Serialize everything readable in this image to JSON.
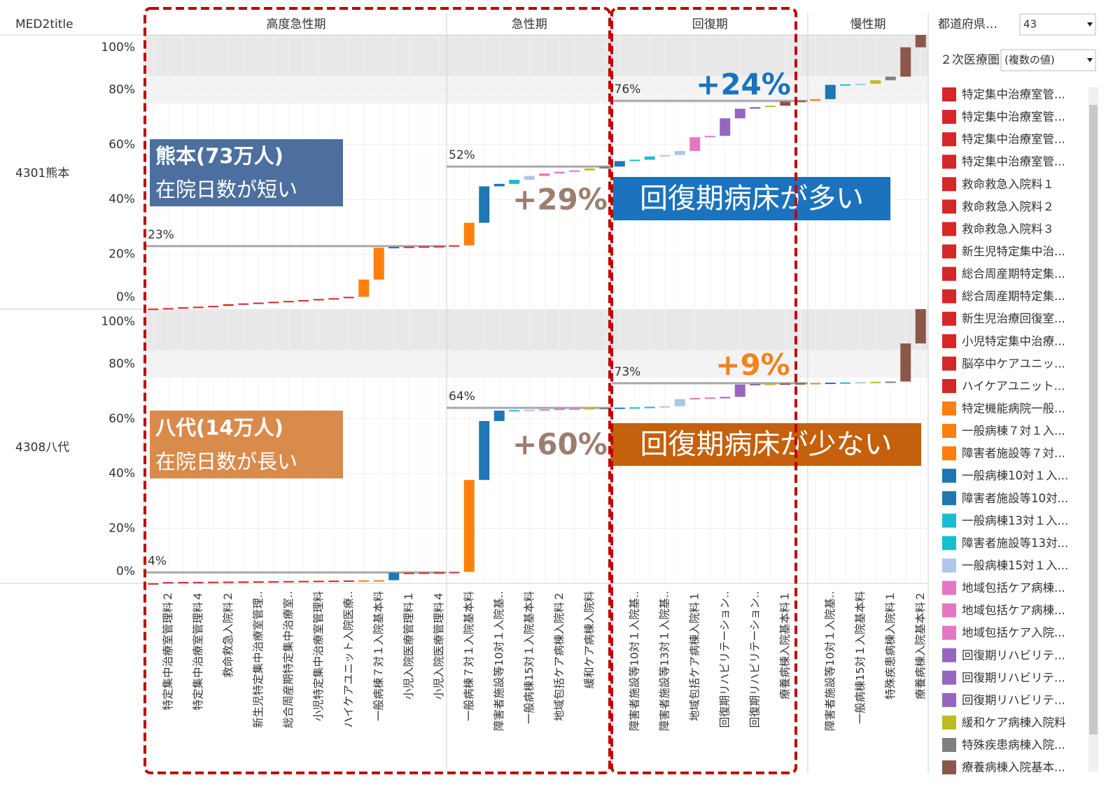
{
  "chart_data": {
    "type": "waterfall",
    "row_header": "MED2title",
    "ylim": [
      0,
      100
    ],
    "yticks": [
      {
        "value": 0,
        "label": "0%"
      },
      {
        "value": 20,
        "label": "20%"
      },
      {
        "value": 40,
        "label": "40%"
      },
      {
        "value": 60,
        "label": "60%"
      },
      {
        "value": 80,
        "label": "80%"
      },
      {
        "value": 100,
        "label": "100%"
      }
    ],
    "bands": [
      {
        "from": 85,
        "to": 100,
        "color": "#e8e8e8"
      },
      {
        "from": 75,
        "to": 85,
        "color": "#f3f3f3"
      }
    ],
    "groups": [
      {
        "name": "高度急性期",
        "categories": [
          null,
          "特定集中治療室管理料２",
          null,
          "特定集中治療室管理料４",
          null,
          "救命救急入院料２",
          null,
          "新生児特定集中治療室管理..",
          null,
          "総合周産期特定集中治療室..",
          null,
          "小児特定集中治療室管理料",
          null,
          "ハイケアユニット入院医療..",
          null,
          "一般病棟７対１入院基本料",
          null,
          "小児入院医療管理料１",
          null,
          "小児入院医療管理料４"
        ],
        "colors": [
          "#d62728",
          "#d62728",
          "#d62728",
          "#d62728",
          "#d62728",
          "#d62728",
          "#d62728",
          "#d62728",
          "#d62728",
          "#d62728",
          "#d62728",
          "#d62728",
          "#d62728",
          "#d62728",
          "#ff7f0e",
          "#ff7f0e",
          "#1f77b4",
          "#d62728",
          "#d62728",
          "#d62728"
        ]
      },
      {
        "name": "急性期",
        "categories": [
          null,
          "一般病棟７対１入院基本料",
          null,
          "障害者施設等10対１入院基..",
          null,
          "一般病棟15対１入院基本料",
          null,
          "地域包括ケア病棟入院料２",
          null,
          "緩和ケア病棟入院料",
          null
        ],
        "colors": [
          "#d62728",
          "#ff7f0e",
          "#1f77b4",
          "#1f77b4",
          "#17becf",
          "#aec7e8",
          "#e377c2",
          "#e377c2",
          "#e377c2",
          "#bcbd22",
          "#7f7f7f"
        ]
      },
      {
        "name": "回復期",
        "categories": [
          null,
          "障害者施設等10対１入院基..",
          null,
          "障害者施設等13対１入院基..",
          null,
          "地域包括ケア病棟入院料１",
          null,
          "回復期リハビリテーション..",
          null,
          "回復期リハビリテーション..",
          null,
          "療養病棟入院基本料１",
          null
        ],
        "colors": [
          "#1f77b4",
          "#17becf",
          "#17becf",
          "#aec7e8",
          "#aec7e8",
          "#e377c2",
          "#e377c2",
          "#9467bd",
          "#9467bd",
          "#9467bd",
          "#bcbd22",
          "#8c564b",
          "#8c564b"
        ]
      },
      {
        "name": "慢性期",
        "categories": [
          null,
          "障害者施設等10対１入院基..",
          null,
          "一般病棟15対１入院基本料",
          null,
          "特殊疾患病棟入院料１",
          null,
          "療養病棟入院基本料２"
        ],
        "colors": [
          "#ff7f0e",
          "#1f77b4",
          "#17becf",
          "#aec7e8",
          "#bcbd22",
          "#7f7f7f",
          "#8c564b",
          "#8c564b"
        ]
      }
    ],
    "rows": [
      {
        "name": "4301熊本",
        "groups": [
          {
            "values": [
              0.2,
              0.2,
              0.3,
              0.2,
              0.3,
              0.6,
              0.3,
              0.3,
              0.3,
              0.3,
              0.3,
              0.4,
              0.3,
              0.5,
              6.3,
              11.6,
              0.3,
              0.1,
              0.1,
              0.1
            ],
            "reference_lines": [
              {
                "value": 23,
                "label": "23%"
              }
            ]
          },
          {
            "values": [
              0.3,
              8.2,
              13.3,
              0.9,
              1.5,
              1.4,
              0.9,
              0.6,
              0.5,
              0.7,
              0.7
            ],
            "reference_lines": [
              {
                "value": 52,
                "label": "52%"
              }
            ]
          },
          {
            "values": [
              2.0,
              0.5,
              1.2,
              0.5,
              1.5,
              5.0,
              0.5,
              6.4,
              3.5,
              0.6,
              0.5,
              1.5,
              0.3
            ],
            "reference_lines": [
              {
                "value": 76,
                "label": "76%"
              }
            ]
          },
          {
            "values": [
              0.6,
              5.2,
              0.2,
              0.2,
              1.3,
              1.3,
              10.7,
              4.5
            ],
            "reference_lines": []
          }
        ]
      },
      {
        "name": "4308八代",
        "groups": [
          {
            "values": [
              0.05,
              0.4,
              0.05,
              0.05,
              0.05,
              0.05,
              0.05,
              0.05,
              0.05,
              0.05,
              0.05,
              0.05,
              0.05,
              0.05,
              0.05,
              0.05,
              2.7,
              0.05,
              0.05,
              0.05
            ],
            "reference_lines": [
              {
                "value": 4,
                "label": "4%"
              }
            ]
          },
          {
            "values": [
              0.2,
              33.5,
              21.5,
              3.8,
              0.2,
              0.1,
              0.2,
              0.2,
              0.1,
              0.1,
              0.1
            ],
            "reference_lines": [
              {
                "value": 64,
                "label": "64%"
              }
            ]
          },
          {
            "values": [
              0.1,
              0.1,
              0.2,
              0.2,
              2.6,
              0.4,
              0.2,
              0.2,
              4.5,
              0.2,
              0.1,
              0.1,
              0.1
            ],
            "reference_lines": [
              {
                "value": 73,
                "label": "73%"
              }
            ]
          },
          {
            "values": [
              0.1,
              0.1,
              0.1,
              0.1,
              0.1,
              0.1,
              13.9,
              12.5
            ],
            "reference_lines": []
          }
        ]
      }
    ],
    "annotations": [
      {
        "lines": [
          "熊本(73万人)",
          "在院日数が短い"
        ],
        "background": "#4c6f9f",
        "color": "#ffffff"
      },
      {
        "lines": [
          "+29%"
        ],
        "color": "#9c7e70"
      },
      {
        "lines": [
          "回復期病床が多い"
        ],
        "background": "#1a73bc",
        "color": "#ffffff"
      },
      {
        "lines": [
          "+24%"
        ],
        "color": "#1a73bc"
      },
      {
        "lines": [
          "八代(14万人)",
          "在院日数が長い"
        ],
        "background": "#d98b4c",
        "color": "#ffffff"
      },
      {
        "lines": [
          "+60%"
        ],
        "color": "#9c7e70"
      },
      {
        "lines": [
          "回復期病床が少ない"
        ],
        "background": "#c5600c",
        "color": "#ffffff"
      },
      {
        "lines": [
          "+9%"
        ],
        "color": "#f0841f"
      }
    ],
    "filters": [
      {
        "label": "都道府県…",
        "value": "43"
      },
      {
        "label": "２次医療圏",
        "value": "(複数の値)"
      }
    ],
    "legend": [
      {
        "name": "特定集中治療室管...",
        "color": "#d62728"
      },
      {
        "name": "特定集中治療室管...",
        "color": "#d62728"
      },
      {
        "name": "特定集中治療室管...",
        "color": "#d62728"
      },
      {
        "name": "特定集中治療室管...",
        "color": "#d62728"
      },
      {
        "name": "救命救急入院料１",
        "color": "#d62728"
      },
      {
        "name": "救命救急入院料２",
        "color": "#d62728"
      },
      {
        "name": "救命救急入院料３",
        "color": "#d62728"
      },
      {
        "name": "新生児特定集中治...",
        "color": "#d62728"
      },
      {
        "name": "総合周産期特定集...",
        "color": "#d62728"
      },
      {
        "name": "総合周産期特定集...",
        "color": "#d62728"
      },
      {
        "name": "新生児治療回復室...",
        "color": "#d62728"
      },
      {
        "name": "小児特定集中治療...",
        "color": "#d62728"
      },
      {
        "name": "脳卒中ケアユニッ...",
        "color": "#d62728"
      },
      {
        "name": "ハイケアユニット...",
        "color": "#d62728"
      },
      {
        "name": "特定機能病院一般...",
        "color": "#ff7f0e"
      },
      {
        "name": "一般病棟７対１入...",
        "color": "#ff7f0e"
      },
      {
        "name": "障害者施設等７対...",
        "color": "#ff7f0e"
      },
      {
        "name": "一般病棟10対１入...",
        "color": "#1f77b4"
      },
      {
        "name": "障害者施設等10対...",
        "color": "#1f77b4"
      },
      {
        "name": "一般病棟13対１入...",
        "color": "#17becf"
      },
      {
        "name": "障害者施設等13対...",
        "color": "#17becf"
      },
      {
        "name": "一般病棟15対１入...",
        "color": "#aec7e8"
      },
      {
        "name": "地域包括ケア病棟...",
        "color": "#e377c2"
      },
      {
        "name": "地域包括ケア病棟...",
        "color": "#e377c2"
      },
      {
        "name": "地域包括ケア入院...",
        "color": "#e377c2"
      },
      {
        "name": "回復期リハビリテ...",
        "color": "#9467bd"
      },
      {
        "name": "回復期リハビリテ...",
        "color": "#9467bd"
      },
      {
        "name": "回復期リハビリテ...",
        "color": "#9467bd"
      },
      {
        "name": "緩和ケア病棟入院料",
        "color": "#bcbd22"
      },
      {
        "name": "特殊疾患病棟入院...",
        "color": "#7f7f7f"
      },
      {
        "name": "療養病棟入院基本...",
        "color": "#8c564b"
      }
    ]
  }
}
